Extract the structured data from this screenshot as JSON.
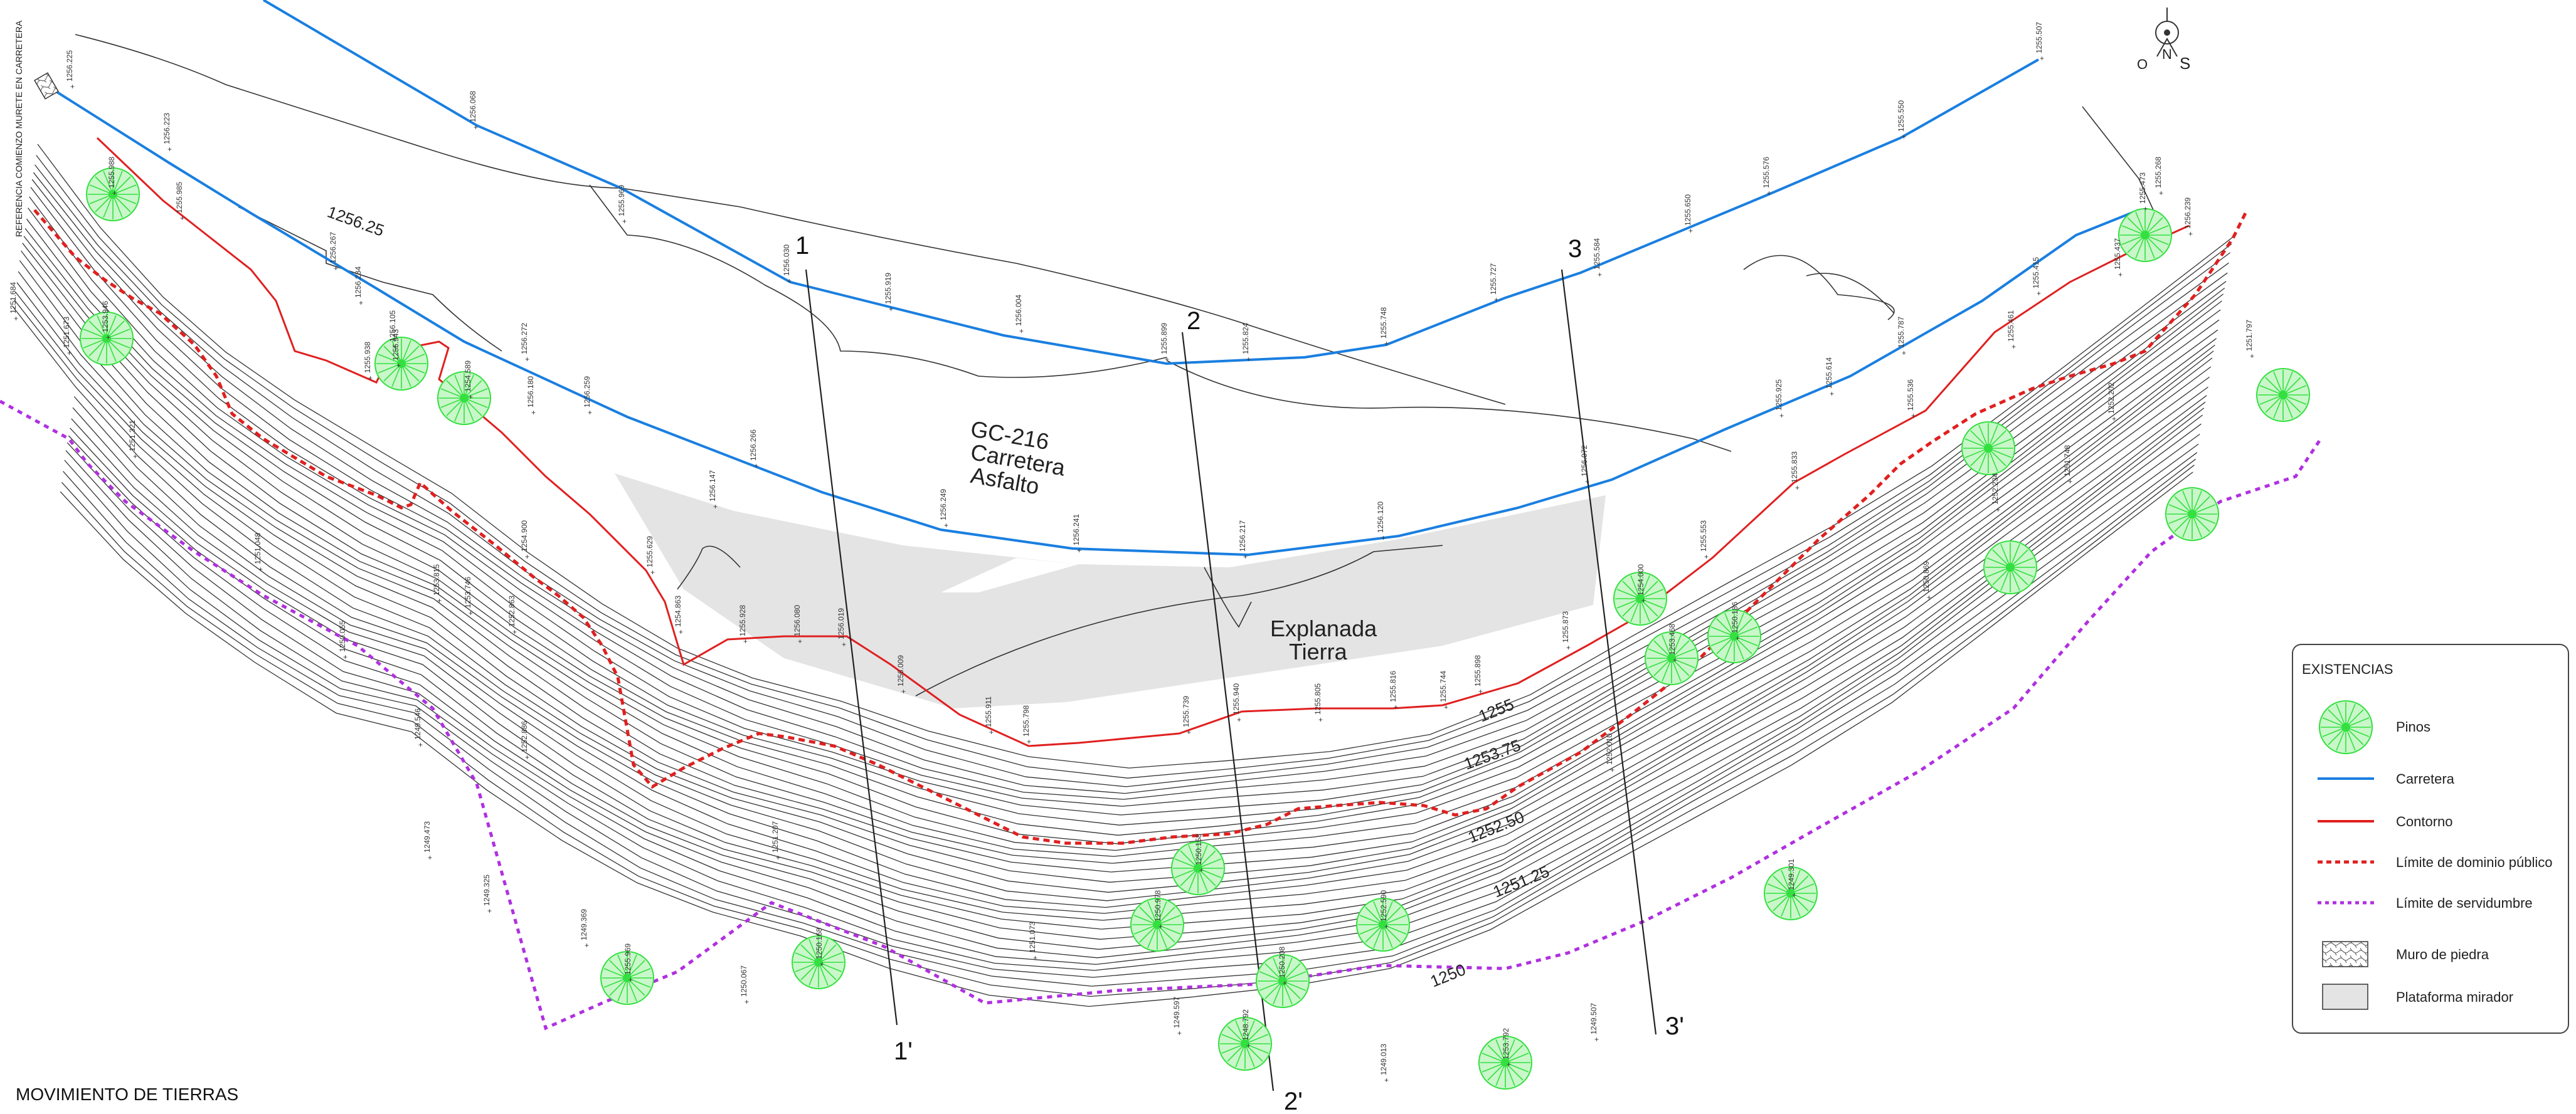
{
  "drawing": {
    "title": "MOVIMIENTO DE TIERRAS",
    "reference_note": "REFERENCIA COMIENZO MURETE EN CARRETERA",
    "road_label": [
      "GC-216",
      "Carretera",
      "Asfalto"
    ],
    "platform_label": [
      "Explanada",
      "Tierra"
    ],
    "compass": {
      "letters": [
        "N",
        "O",
        "S"
      ]
    }
  },
  "sections": [
    {
      "start": "1",
      "end": "1'"
    },
    {
      "start": "2",
      "end": "2'"
    },
    {
      "start": "3",
      "end": "3'"
    }
  ],
  "contour_labels": [
    "1256.25",
    "1255",
    "1253.75",
    "1252.50",
    "1251.25",
    "1250"
  ],
  "road_elevations": [
    "1256.068",
    "1255.969",
    "1256.030",
    "1255.919",
    "1256.004",
    "1255.899",
    "1255.824",
    "1255.748",
    "1255.727",
    "1255.584",
    "1255.650",
    "1255.576",
    "1255.550",
    "1255.507"
  ],
  "edge_elevations": [
    "1256.225",
    "1256.223",
    "1255.985",
    "1256.267",
    "1256.234",
    "1256.272",
    "1256.259",
    "1256.266",
    "1256.249",
    "1256.241",
    "1256.217",
    "1256.120",
    "1256.072",
    "1255.925",
    "1255.614",
    "1255.787",
    "1255.415",
    "1255.473",
    "1255.268",
    "1256.239"
  ],
  "misc_elevations": [
    "1255.938",
    "1256.105",
    "1256.180",
    "1256.147",
    "1255.629",
    "1255.928",
    "1256.080",
    "1256.019",
    "1256.009",
    "1255.911",
    "1255.798",
    "1255.739",
    "1255.940",
    "1255.805",
    "1255.816",
    "1255.744",
    "1255.898",
    "1255.873",
    "1255.553",
    "1255.833",
    "1255.536",
    "1255.461",
    "1255.437",
    "1251.797",
    "1254.900",
    "1254.863",
    "1253.815",
    "1253.746",
    "1252.863",
    "1252.886",
    "1251.684",
    "1251.673",
    "1251.321",
    "1251.048",
    "1250.055",
    "1249.546",
    "1249.473",
    "1249.325",
    "1249.369",
    "1250.067",
    "1251.207",
    "1251.073",
    "1249.597",
    "1249.013",
    "1249.507",
    "1252.010",
    "1252.234",
    "1252.202",
    "1251.748",
    "1250.869"
  ],
  "tree_elevations": [
    "1255.988",
    "1253.946",
    "1255.943",
    "1254.589",
    "1255.969",
    "1250.168",
    "1250.978",
    "1250.158",
    "1248.792",
    "1250.208",
    "1252.590",
    "1253.792",
    "1254.000",
    "1253.468",
    "1250.186",
    "1249.301"
  ],
  "legend": {
    "title": "EXISTENCIAS",
    "items": [
      {
        "key": "pinos",
        "label": "Pinos"
      },
      {
        "key": "carretera",
        "label": "Carretera"
      },
      {
        "key": "contorno",
        "label": "Contorno"
      },
      {
        "key": "dominio",
        "label": "Límite de dominio público"
      },
      {
        "key": "servidumbre",
        "label": "Límite de servidumbre"
      },
      {
        "key": "muro",
        "label": "Muro de piedra"
      },
      {
        "key": "plataforma",
        "label": "Plataforma mirador"
      }
    ]
  },
  "colors": {
    "road": "#1a7fe0",
    "contour": "#e02020",
    "public_domain": "#e02020",
    "easement": "#b030e0",
    "tree": "#33e040",
    "tree_fill": "#c9f7c9",
    "platform": "#e4e4e4",
    "terrain": "#333333"
  }
}
